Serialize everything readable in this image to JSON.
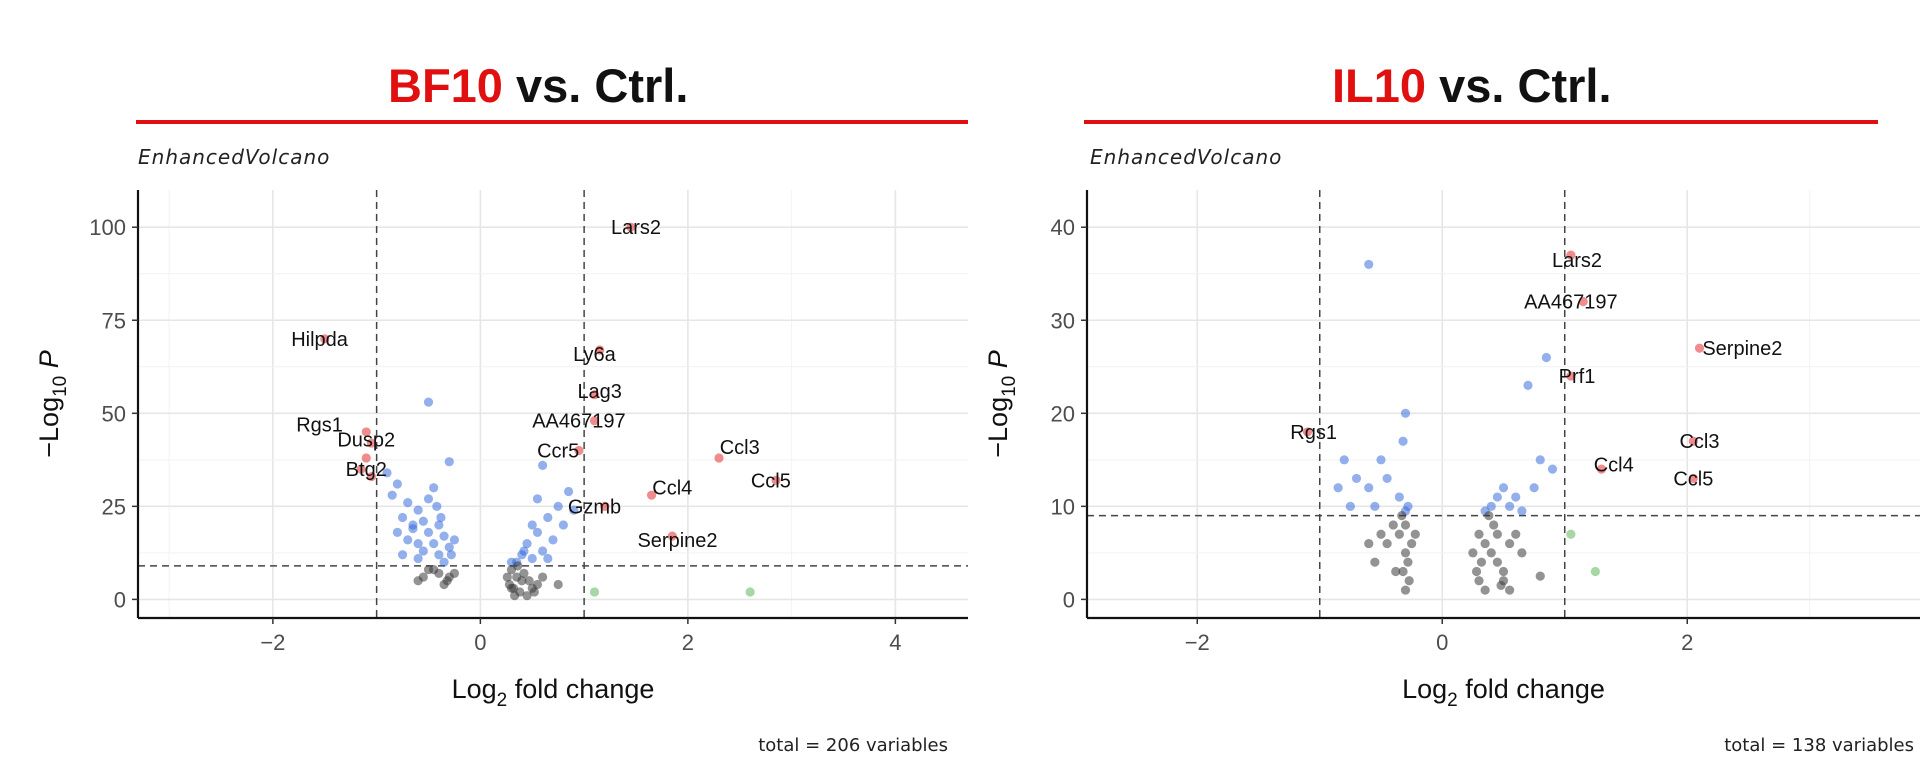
{
  "chart_data": [
    {
      "type": "scatter",
      "title_highlight": "BF10",
      "title_rest": " vs. Ctrl.",
      "subtitle": "EnhancedVolcano",
      "caption": "total = 206 variables",
      "xlabel": "Log2 fold change",
      "ylabel": "−Log10 P",
      "xlim": [
        -3.3,
        4.7
      ],
      "ylim": [
        -5,
        110
      ],
      "xticks": [
        -2,
        0,
        2,
        4
      ],
      "yticks": [
        0,
        25,
        50,
        75,
        100
      ],
      "fc_cutoff": [
        -1,
        1
      ],
      "p_cutoff": 9,
      "grid": true,
      "colors": {
        "ns": "#3a3a3a",
        "fc": "#4daf4a",
        "p": "#2a62d9",
        "both": "#e41a1c",
        "accent": "#e01010"
      },
      "points": [
        {
          "x": -1.5,
          "y": 70,
          "c": "both"
        },
        {
          "x": -1.1,
          "y": 45,
          "c": "both"
        },
        {
          "x": -1.05,
          "y": 42,
          "c": "both"
        },
        {
          "x": -1.1,
          "y": 38,
          "c": "both"
        },
        {
          "x": -1.15,
          "y": 35,
          "c": "both"
        },
        {
          "x": -1.05,
          "y": 33,
          "c": "both"
        },
        {
          "x": 1.45,
          "y": 100,
          "c": "both"
        },
        {
          "x": 1.15,
          "y": 67,
          "c": "both"
        },
        {
          "x": 1.1,
          "y": 55,
          "c": "both"
        },
        {
          "x": 1.1,
          "y": 48,
          "c": "both"
        },
        {
          "x": 0.95,
          "y": 40,
          "c": "both"
        },
        {
          "x": 1.65,
          "y": 28,
          "c": "both"
        },
        {
          "x": 1.2,
          "y": 25,
          "c": "both"
        },
        {
          "x": 1.85,
          "y": 17,
          "c": "both"
        },
        {
          "x": 2.3,
          "y": 38,
          "c": "both"
        },
        {
          "x": 2.85,
          "y": 32,
          "c": "both"
        },
        {
          "x": 1.1,
          "y": 2,
          "c": "fc"
        },
        {
          "x": 2.6,
          "y": 2,
          "c": "fc"
        },
        {
          "x": -0.5,
          "y": 53,
          "c": "p"
        },
        {
          "x": -0.9,
          "y": 34,
          "c": "p"
        },
        {
          "x": -0.8,
          "y": 31,
          "c": "p"
        },
        {
          "x": -0.85,
          "y": 28,
          "c": "p"
        },
        {
          "x": -0.7,
          "y": 26,
          "c": "p"
        },
        {
          "x": -0.6,
          "y": 24,
          "c": "p"
        },
        {
          "x": -0.75,
          "y": 22,
          "c": "p"
        },
        {
          "x": -0.55,
          "y": 21,
          "c": "p"
        },
        {
          "x": -0.4,
          "y": 20,
          "c": "p"
        },
        {
          "x": -0.65,
          "y": 19,
          "c": "p"
        },
        {
          "x": -0.5,
          "y": 18,
          "c": "p"
        },
        {
          "x": -0.35,
          "y": 17,
          "c": "p"
        },
        {
          "x": -0.7,
          "y": 16,
          "c": "p"
        },
        {
          "x": -0.45,
          "y": 15,
          "c": "p"
        },
        {
          "x": -0.3,
          "y": 14,
          "c": "p"
        },
        {
          "x": -0.55,
          "y": 13,
          "c": "p"
        },
        {
          "x": -0.4,
          "y": 12,
          "c": "p"
        },
        {
          "x": -0.6,
          "y": 11,
          "c": "p"
        },
        {
          "x": -0.35,
          "y": 10,
          "c": "p"
        },
        {
          "x": -0.5,
          "y": 27,
          "c": "p"
        },
        {
          "x": -0.3,
          "y": 37,
          "c": "p"
        },
        {
          "x": -0.45,
          "y": 30,
          "c": "p"
        },
        {
          "x": -0.65,
          "y": 20,
          "c": "p"
        },
        {
          "x": -0.8,
          "y": 18,
          "c": "p"
        },
        {
          "x": -0.6,
          "y": 15,
          "c": "p"
        },
        {
          "x": -0.38,
          "y": 22,
          "c": "p"
        },
        {
          "x": -0.75,
          "y": 12,
          "c": "p"
        },
        {
          "x": -0.25,
          "y": 16,
          "c": "p"
        },
        {
          "x": -0.42,
          "y": 25,
          "c": "p"
        },
        {
          "x": -0.28,
          "y": 12,
          "c": "p"
        },
        {
          "x": 0.6,
          "y": 36,
          "c": "p"
        },
        {
          "x": 0.85,
          "y": 29,
          "c": "p"
        },
        {
          "x": 0.75,
          "y": 25,
          "c": "p"
        },
        {
          "x": 0.65,
          "y": 22,
          "c": "p"
        },
        {
          "x": 0.5,
          "y": 20,
          "c": "p"
        },
        {
          "x": 0.55,
          "y": 18,
          "c": "p"
        },
        {
          "x": 0.7,
          "y": 16,
          "c": "p"
        },
        {
          "x": 0.45,
          "y": 15,
          "c": "p"
        },
        {
          "x": 0.6,
          "y": 13,
          "c": "p"
        },
        {
          "x": 0.4,
          "y": 12,
          "c": "p"
        },
        {
          "x": 0.5,
          "y": 11,
          "c": "p"
        },
        {
          "x": 0.35,
          "y": 10,
          "c": "p"
        },
        {
          "x": 0.8,
          "y": 20,
          "c": "p"
        },
        {
          "x": 0.9,
          "y": 24,
          "c": "p"
        },
        {
          "x": 0.55,
          "y": 27,
          "c": "p"
        },
        {
          "x": 0.3,
          "y": 10,
          "c": "p"
        },
        {
          "x": 0.65,
          "y": 11,
          "c": "p"
        },
        {
          "x": 0.42,
          "y": 13,
          "c": "p"
        },
        {
          "x": -0.5,
          "y": 8,
          "c": "ns"
        },
        {
          "x": -0.4,
          "y": 7,
          "c": "ns"
        },
        {
          "x": -0.3,
          "y": 6,
          "c": "ns"
        },
        {
          "x": -0.6,
          "y": 5,
          "c": "ns"
        },
        {
          "x": -0.35,
          "y": 4,
          "c": "ns"
        },
        {
          "x": -0.45,
          "y": 8,
          "c": "ns"
        },
        {
          "x": -0.25,
          "y": 7,
          "c": "ns"
        },
        {
          "x": -0.55,
          "y": 6,
          "c": "ns"
        },
        {
          "x": -0.32,
          "y": 5,
          "c": "ns"
        },
        {
          "x": 0.3,
          "y": 8,
          "c": "ns"
        },
        {
          "x": 0.35,
          "y": 6,
          "c": "ns"
        },
        {
          "x": 0.4,
          "y": 5,
          "c": "ns"
        },
        {
          "x": 0.28,
          "y": 4,
          "c": "ns"
        },
        {
          "x": 0.32,
          "y": 3,
          "c": "ns"
        },
        {
          "x": 0.38,
          "y": 2,
          "c": "ns"
        },
        {
          "x": 0.45,
          "y": 1,
          "c": "ns"
        },
        {
          "x": 0.5,
          "y": 3,
          "c": "ns"
        },
        {
          "x": 0.42,
          "y": 7,
          "c": "ns"
        },
        {
          "x": 0.36,
          "y": 9,
          "c": "ns"
        },
        {
          "x": 0.26,
          "y": 6,
          "c": "ns"
        },
        {
          "x": 0.55,
          "y": 4,
          "c": "ns"
        },
        {
          "x": 0.6,
          "y": 6,
          "c": "ns"
        },
        {
          "x": 0.33,
          "y": 1,
          "c": "ns"
        },
        {
          "x": 0.47,
          "y": 5,
          "c": "ns"
        },
        {
          "x": 0.75,
          "y": 4,
          "c": "ns"
        },
        {
          "x": 0.52,
          "y": 2,
          "c": "ns"
        },
        {
          "x": 0.3,
          "y": 3,
          "c": "ns"
        }
      ],
      "labels": [
        {
          "text": "Hilpda",
          "x": -1.55,
          "y": 70
        },
        {
          "text": "Rgs1",
          "x": -1.55,
          "y": 47
        },
        {
          "text": "Dusp2",
          "x": -1.1,
          "y": 43
        },
        {
          "text": "Btg2",
          "x": -1.1,
          "y": 35
        },
        {
          "text": "Lars2",
          "x": 1.5,
          "y": 100
        },
        {
          "text": "Ly6a",
          "x": 1.1,
          "y": 66
        },
        {
          "text": "Lag3",
          "x": 1.15,
          "y": 56
        },
        {
          "text": "AA467197",
          "x": 0.95,
          "y": 48
        },
        {
          "text": "Ccr5",
          "x": 0.75,
          "y": 40
        },
        {
          "text": "Ccl3",
          "x": 2.5,
          "y": 41
        },
        {
          "text": "Ccl5",
          "x": 2.8,
          "y": 32
        },
        {
          "text": "Ccl4",
          "x": 1.85,
          "y": 30
        },
        {
          "text": "Gzmb",
          "x": 1.1,
          "y": 25
        },
        {
          "text": "Serpine2",
          "x": 1.9,
          "y": 16
        }
      ]
    },
    {
      "type": "scatter",
      "title_highlight": "IL10",
      "title_rest": " vs. Ctrl.",
      "subtitle": "EnhancedVolcano",
      "caption": "total = 138 variables",
      "xlabel": "Log2 fold change",
      "ylabel": "−Log10 P",
      "xlim": [
        -2.9,
        3.9
      ],
      "ylim": [
        -2,
        44
      ],
      "xticks": [
        -2,
        0,
        2
      ],
      "yticks": [
        0,
        10,
        20,
        30,
        40
      ],
      "fc_cutoff": [
        -1,
        1
      ],
      "p_cutoff": 9,
      "grid": true,
      "colors": {
        "ns": "#3a3a3a",
        "fc": "#4daf4a",
        "p": "#2a62d9",
        "both": "#e41a1c",
        "accent": "#e01010"
      },
      "points": [
        {
          "x": 1.05,
          "y": 37,
          "c": "both"
        },
        {
          "x": 1.15,
          "y": 32,
          "c": "both"
        },
        {
          "x": 2.1,
          "y": 27,
          "c": "both"
        },
        {
          "x": 1.05,
          "y": 24,
          "c": "both"
        },
        {
          "x": -1.1,
          "y": 18,
          "c": "both"
        },
        {
          "x": 2.05,
          "y": 17,
          "c": "both"
        },
        {
          "x": 2.05,
          "y": 13,
          "c": "both"
        },
        {
          "x": 1.3,
          "y": 14,
          "c": "both"
        },
        {
          "x": 1.05,
          "y": 7,
          "c": "fc"
        },
        {
          "x": 1.25,
          "y": 3,
          "c": "fc"
        },
        {
          "x": -0.6,
          "y": 36,
          "c": "p"
        },
        {
          "x": 0.85,
          "y": 26,
          "c": "p"
        },
        {
          "x": 0.7,
          "y": 23,
          "c": "p"
        },
        {
          "x": -0.3,
          "y": 20,
          "c": "p"
        },
        {
          "x": -0.32,
          "y": 17,
          "c": "p"
        },
        {
          "x": -0.8,
          "y": 15,
          "c": "p"
        },
        {
          "x": -0.5,
          "y": 15,
          "c": "p"
        },
        {
          "x": -0.7,
          "y": 13,
          "c": "p"
        },
        {
          "x": -0.85,
          "y": 12,
          "c": "p"
        },
        {
          "x": -0.6,
          "y": 12,
          "c": "p"
        },
        {
          "x": -0.45,
          "y": 13,
          "c": "p"
        },
        {
          "x": -0.75,
          "y": 10,
          "c": "p"
        },
        {
          "x": -0.35,
          "y": 11,
          "c": "p"
        },
        {
          "x": -0.28,
          "y": 10,
          "c": "p"
        },
        {
          "x": -0.55,
          "y": 10,
          "c": "p"
        },
        {
          "x": -0.3,
          "y": 9.5,
          "c": "p"
        },
        {
          "x": 0.8,
          "y": 15,
          "c": "p"
        },
        {
          "x": 0.75,
          "y": 12,
          "c": "p"
        },
        {
          "x": 0.5,
          "y": 12,
          "c": "p"
        },
        {
          "x": 0.6,
          "y": 11,
          "c": "p"
        },
        {
          "x": 0.45,
          "y": 11,
          "c": "p"
        },
        {
          "x": 0.55,
          "y": 10,
          "c": "p"
        },
        {
          "x": 0.4,
          "y": 10,
          "c": "p"
        },
        {
          "x": 0.65,
          "y": 9.5,
          "c": "p"
        },
        {
          "x": 0.35,
          "y": 9.5,
          "c": "p"
        },
        {
          "x": 0.9,
          "y": 14,
          "c": "p"
        },
        {
          "x": -0.3,
          "y": 8,
          "c": "ns"
        },
        {
          "x": -0.35,
          "y": 7,
          "c": "ns"
        },
        {
          "x": -0.25,
          "y": 6,
          "c": "ns"
        },
        {
          "x": -0.3,
          "y": 5,
          "c": "ns"
        },
        {
          "x": -0.28,
          "y": 4,
          "c": "ns"
        },
        {
          "x": -0.32,
          "y": 3,
          "c": "ns"
        },
        {
          "x": -0.27,
          "y": 2,
          "c": "ns"
        },
        {
          "x": -0.3,
          "y": 1,
          "c": "ns"
        },
        {
          "x": -0.45,
          "y": 6,
          "c": "ns"
        },
        {
          "x": -0.55,
          "y": 4,
          "c": "ns"
        },
        {
          "x": -0.4,
          "y": 8,
          "c": "ns"
        },
        {
          "x": -0.5,
          "y": 7,
          "c": "ns"
        },
        {
          "x": -0.6,
          "y": 6,
          "c": "ns"
        },
        {
          "x": -0.38,
          "y": 3,
          "c": "ns"
        },
        {
          "x": -0.22,
          "y": 7,
          "c": "ns"
        },
        {
          "x": -0.33,
          "y": 9,
          "c": "ns"
        },
        {
          "x": 0.3,
          "y": 7,
          "c": "ns"
        },
        {
          "x": 0.35,
          "y": 6,
          "c": "ns"
        },
        {
          "x": 0.4,
          "y": 5,
          "c": "ns"
        },
        {
          "x": 0.45,
          "y": 4,
          "c": "ns"
        },
        {
          "x": 0.5,
          "y": 3,
          "c": "ns"
        },
        {
          "x": 0.3,
          "y": 2,
          "c": "ns"
        },
        {
          "x": 0.35,
          "y": 1,
          "c": "ns"
        },
        {
          "x": 0.25,
          "y": 5,
          "c": "ns"
        },
        {
          "x": 0.55,
          "y": 6,
          "c": "ns"
        },
        {
          "x": 0.6,
          "y": 7,
          "c": "ns"
        },
        {
          "x": 0.42,
          "y": 8,
          "c": "ns"
        },
        {
          "x": 0.38,
          "y": 9,
          "c": "ns"
        },
        {
          "x": 0.5,
          "y": 2,
          "c": "ns"
        },
        {
          "x": 0.65,
          "y": 5,
          "c": "ns"
        },
        {
          "x": 0.45,
          "y": 7,
          "c": "ns"
        },
        {
          "x": 0.32,
          "y": 4,
          "c": "ns"
        },
        {
          "x": 0.48,
          "y": 1.5,
          "c": "ns"
        },
        {
          "x": 0.8,
          "y": 2.5,
          "c": "ns"
        },
        {
          "x": 0.55,
          "y": 1,
          "c": "ns"
        },
        {
          "x": 0.28,
          "y": 3,
          "c": "ns"
        }
      ],
      "labels": [
        {
          "text": "Lars2",
          "x": 1.1,
          "y": 36.5
        },
        {
          "text": "AA467197",
          "x": 1.05,
          "y": 32
        },
        {
          "text": "Serpine2",
          "x": 2.45,
          "y": 27
        },
        {
          "text": "Prf1",
          "x": 1.1,
          "y": 24
        },
        {
          "text": "Rgs1",
          "x": -1.05,
          "y": 18
        },
        {
          "text": "Ccl3",
          "x": 2.1,
          "y": 17
        },
        {
          "text": "Ccl4",
          "x": 1.4,
          "y": 14.5
        },
        {
          "text": "Ccl5",
          "x": 2.05,
          "y": 13
        }
      ]
    }
  ]
}
